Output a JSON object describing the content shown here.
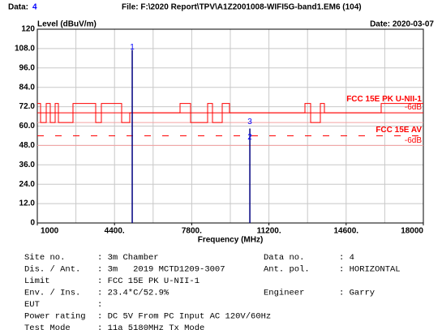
{
  "chart_data": {
    "type": "line",
    "header": {
      "data_label": "Data:",
      "data_no": "4",
      "file": "File: F:\\2020 Report\\TPV\\A1Z2001008-WIFI5G-band1.EM6  (104)"
    },
    "date": "Date: 2020-03-07",
    "y_label": "Level (dBuV/m)",
    "x_label": "Frequency (MHz)",
    "xlim": [
      1000,
      18000
    ],
    "ylim": [
      0,
      120
    ],
    "xticks": [
      1000,
      {
        "value": 4400,
        "label": "4400."
      },
      {
        "value": 7800,
        "label": "7800."
      },
      {
        "value": 11200,
        "label": "11200."
      },
      {
        "value": 14600,
        "label": "14600."
      },
      18000
    ],
    "xgrid": [
      2700,
      4400,
      6100,
      7800,
      9500,
      11200,
      12900,
      14600,
      16300
    ],
    "yticks": [
      0,
      {
        "value": 12,
        "label": "12.0"
      },
      {
        "value": 24,
        "label": "24.0"
      },
      {
        "value": 36,
        "label": "36.0"
      },
      {
        "value": 48,
        "label": "48.0"
      },
      {
        "value": 60,
        "label": "60.0"
      },
      {
        "value": 72,
        "label": "72.0"
      },
      {
        "value": 84,
        "label": "84.0"
      },
      {
        "value": 96,
        "label": "96.0"
      },
      {
        "value": 108,
        "label": "108.0"
      },
      120
    ],
    "grid": true,
    "series": [
      {
        "color": "#ff0000",
        "step": true,
        "x": [
          1000,
          1143,
          1393,
          1571,
          1786,
          1929,
          2571,
          3571,
          3821,
          4714,
          5071,
          7286,
          7750,
          8500,
          8714,
          9143,
          9464,
          12786,
          13036,
          13464,
          13643,
          16143,
          18000
        ],
        "values": [
          74,
          62.2,
          74,
          62.2,
          74,
          62.2,
          74,
          62.2,
          74,
          62.2,
          68.2,
          74,
          62.2,
          74,
          62.2,
          74,
          68.2,
          74,
          62.2,
          74,
          68.2,
          74,
          74
        ]
      }
    ],
    "limits": [
      {
        "name": "FCC 15E PK U-NII-1",
        "value": 68.2,
        "color": "#ff0000",
        "dashed": false,
        "margin_label": "-6dB",
        "margin_value": 62.2
      },
      {
        "name": "FCC 15E AV",
        "value": 54,
        "color": "#ff0000",
        "dashed": true,
        "margin_label": "-6dB",
        "margin_value": 48
      }
    ],
    "spikes": [
      {
        "x": 5180,
        "value": 107.2
      },
      {
        "x": 10360,
        "value": 58.5
      }
    ],
    "spike_color": "#000080",
    "markers": [
      {
        "label": "1",
        "x": 5180,
        "value": 107.2
      },
      {
        "label": "3",
        "x": 10360,
        "value": 61
      },
      {
        "label": "2",
        "x": 10360,
        "value": 51.5
      }
    ],
    "marker_color": "#0000ff"
  },
  "info": [
    [
      "Site no.",
      ": 3m Chamber",
      "Data no.",
      ": 4"
    ],
    [
      "Dis. / Ant.",
      ": 3m   2019 MCTD1209-3007",
      "Ant. pol.",
      ": HORIZONTAL"
    ],
    [
      "Limit",
      ": FCC 15E PK U-NII-1"
    ],
    [
      "Env. / Ins.",
      ": 23.4*C/52.9%",
      "Engineer",
      ": Garry"
    ],
    [
      "EUT",
      ":"
    ],
    [
      "Power rating",
      ": DC 5V From PC Input AC 120V/60Hz"
    ],
    [
      "Test Mode",
      ": 11a 5180MHz Tx Mode"
    ]
  ]
}
